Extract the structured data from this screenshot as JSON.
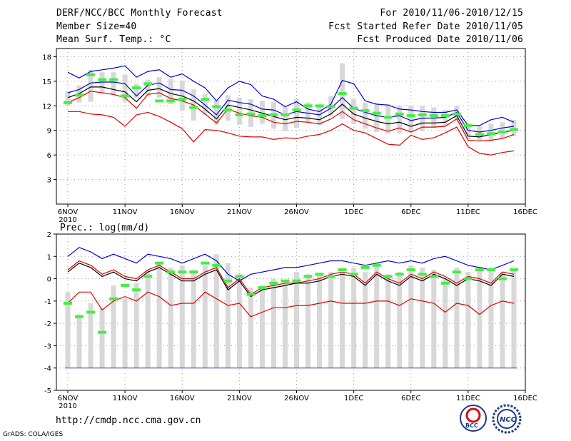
{
  "header": {
    "title": "DERF/NCC/BCC Monthly Forecast",
    "member_size": "Member Size=40",
    "variable": "Mean Surf. Temp.: °C",
    "period": "For 2010/11/06-2010/12/15",
    "start": "Fcst Started Refer Date 2010/11/05",
    "produced": "Fcst Produced Date 2010/11/06"
  },
  "footer": {
    "url": "http://cmdp.ncc.cma.gov.cn",
    "credit": "GrADS: COLA/IGES",
    "logo_bcc_text": "BCC",
    "logo_ncc_text": "NCC"
  },
  "colors": {
    "upper": "#0000e0",
    "lower": "#e00000",
    "mean": "#000000",
    "obs": "#44ee44",
    "bar": "#d8d8d8",
    "grid": "#999999"
  },
  "chart_data": [
    {
      "type": "line",
      "title": "Mean Surf. Temp.: °C",
      "ylim": [
        0,
        19
      ],
      "yticks": [
        3,
        6,
        9,
        12,
        15,
        18
      ],
      "x_tick_labels": [
        "6NOV",
        "11NOV",
        "16NOV",
        "21NOV",
        "26NOV",
        "1DEC",
        "6DEC",
        "11DEC",
        "16DEC"
      ],
      "year_label": "2010",
      "x_days": 40,
      "series": [
        {
          "name": "max",
          "values": [
            16.1,
            15.4,
            16.2,
            16.4,
            16.6,
            16.9,
            15.5,
            16.2,
            16.4,
            15.5,
            15.9,
            15.0,
            14.2,
            12.6,
            14.2,
            15.0,
            14.6,
            13.2,
            12.8,
            11.9,
            12.5,
            11.6,
            11.3,
            12.2,
            15.1,
            14.7,
            12.6,
            12.2,
            12.1,
            11.6,
            11.5,
            11.3,
            11.2,
            11.2,
            11.5,
            9.6,
            9.6,
            10.3,
            10.6,
            10.0
          ]
        },
        {
          "name": "upper",
          "values": [
            13.6,
            14.0,
            14.8,
            14.9,
            14.9,
            14.7,
            13.2,
            14.5,
            14.8,
            14.0,
            13.9,
            13.2,
            12.1,
            10.9,
            12.7,
            12.4,
            12.2,
            11.6,
            11.5,
            10.9,
            11.3,
            11.1,
            10.9,
            11.7,
            13.0,
            11.7,
            11.2,
            10.8,
            10.6,
            10.8,
            10.2,
            10.5,
            10.5,
            10.6,
            11.2,
            9.0,
            8.8,
            9.0,
            9.3,
            9.5
          ]
        },
        {
          "name": "mean",
          "values": [
            13.0,
            13.5,
            14.3,
            14.3,
            14.0,
            13.7,
            12.5,
            13.9,
            14.1,
            13.5,
            13.2,
            12.6,
            11.6,
            10.4,
            12.1,
            11.8,
            11.5,
            11.1,
            10.7,
            10.3,
            10.6,
            10.5,
            10.3,
            11.0,
            12.2,
            11.0,
            10.5,
            10.1,
            9.8,
            10.0,
            9.5,
            9.9,
            9.9,
            10.0,
            10.8,
            8.3,
            8.2,
            8.5,
            8.8,
            9.0
          ]
        },
        {
          "name": "lower",
          "values": [
            12.4,
            13.0,
            13.8,
            13.6,
            13.4,
            13.0,
            11.7,
            13.4,
            13.6,
            12.9,
            12.6,
            12.1,
            11.0,
            9.9,
            11.6,
            11.1,
            10.8,
            10.6,
            10.0,
            9.8,
            10.1,
            10.0,
            9.8,
            10.4,
            11.3,
            10.3,
            9.8,
            9.3,
            8.9,
            9.3,
            8.8,
            9.4,
            9.4,
            9.5,
            10.4,
            7.8,
            7.7,
            7.8,
            8.0,
            8.5
          ]
        },
        {
          "name": "min",
          "values": [
            11.3,
            11.3,
            11.0,
            10.9,
            10.6,
            9.5,
            10.9,
            11.2,
            10.7,
            10.0,
            9.2,
            7.6,
            9.1,
            9.0,
            8.7,
            8.3,
            8.2,
            8.2,
            7.9,
            8.1,
            8.0,
            8.3,
            8.5,
            9.0,
            9.8,
            9.0,
            8.7,
            8.0,
            7.3,
            7.2,
            8.4,
            7.9,
            8.1,
            8.7,
            9.4,
            7.0,
            6.2,
            6.0,
            6.3,
            6.5
          ]
        },
        {
          "name": "obs",
          "values": [
            12.4,
            13.3,
            15.8,
            15.2,
            15.2,
            13.2,
            14.2,
            14.7,
            12.6,
            12.6,
            12.8,
            11.8,
            12.8,
            11.9,
            11.5,
            10.9,
            11.0,
            10.8,
            10.9,
            10.9,
            11.5,
            12.0,
            12.0,
            11.9,
            13.5,
            11.7,
            11.4,
            11.1,
            10.6,
            11.0,
            10.8,
            10.9,
            10.8,
            10.8,
            11.0,
            9.6,
            8.5,
            8.6,
            8.8,
            9.1
          ]
        },
        {
          "name": "bar_top",
          "values": [
            13.8,
            14.5,
            16.4,
            16.1,
            16.1,
            15.8,
            14.7,
            15.2,
            15.5,
            15.3,
            15.1,
            14.0,
            13.5,
            12.7,
            13.3,
            13.0,
            12.8,
            12.6,
            12.5,
            12.0,
            12.8,
            12.4,
            12.0,
            13.2,
            17.2,
            12.8,
            12.4,
            12.3,
            12.2,
            12.0,
            12.0,
            12.0,
            11.8,
            11.5,
            12.0,
            9.7,
            9.5,
            9.8,
            10.0,
            10.3
          ]
        },
        {
          "name": "bar_bottom",
          "values": [
            12.0,
            12.4,
            12.5,
            13.6,
            13.3,
            12.5,
            13.0,
            13.2,
            13.0,
            12.2,
            11.4,
            10.2,
            10.9,
            9.7,
            10.2,
            9.7,
            9.4,
            9.8,
            9.2,
            8.9,
            9.3,
            10.0,
            9.6,
            10.8,
            10.4,
            9.8,
            9.2,
            8.8,
            8.6,
            8.6,
            8.7,
            8.9,
            9.3,
            9.5,
            10.2,
            7.9,
            7.7,
            7.7,
            8.0,
            8.3
          ]
        }
      ]
    },
    {
      "type": "line",
      "title": "Prec.: log(mm/d)",
      "ylim": [
        -5,
        2
      ],
      "yticks": [
        -5,
        -4,
        -3,
        -2,
        -1,
        0,
        1,
        2
      ],
      "x_tick_labels": [
        "6NOV",
        "11NOV",
        "16NOV",
        "21NOV",
        "26NOV",
        "1DEC",
        "6DEC",
        "11DEC",
        "16DEC"
      ],
      "year_label": "2010",
      "x_days": 40,
      "floor": -4,
      "series": [
        {
          "name": "upper",
          "values": [
            1.0,
            1.4,
            1.2,
            0.9,
            1.1,
            0.9,
            0.7,
            1.1,
            1.0,
            0.9,
            0.7,
            0.9,
            1.1,
            0.8,
            0.2,
            -0.1,
            0.2,
            0.3,
            0.4,
            0.5,
            0.5,
            0.6,
            0.7,
            0.8,
            0.8,
            0.7,
            0.6,
            0.7,
            0.8,
            0.7,
            0.8,
            0.7,
            0.9,
            1.0,
            0.8,
            0.6,
            0.5,
            0.4,
            0.6,
            0.8
          ]
        },
        {
          "name": "mean_red",
          "values": [
            0.4,
            0.8,
            0.6,
            0.2,
            0.4,
            0.1,
            0.0,
            0.4,
            0.6,
            0.3,
            0.0,
            0.0,
            0.3,
            0.5,
            -0.4,
            0.0,
            -0.7,
            -0.4,
            -0.3,
            -0.2,
            -0.2,
            -0.1,
            0.0,
            0.2,
            0.3,
            0.2,
            -0.2,
            0.3,
            0.0,
            -0.2,
            0.2,
            0.0,
            0.3,
            0.1,
            -0.2,
            0.1,
            0.0,
            -0.2,
            0.3,
            0.2
          ]
        },
        {
          "name": "mean",
          "values": [
            0.3,
            0.7,
            0.5,
            0.1,
            0.3,
            0.0,
            -0.1,
            0.3,
            0.5,
            0.2,
            -0.1,
            -0.1,
            0.2,
            0.4,
            -0.5,
            -0.1,
            -0.8,
            -0.5,
            -0.4,
            -0.3,
            -0.2,
            -0.2,
            -0.1,
            0.1,
            0.2,
            0.1,
            -0.3,
            0.2,
            -0.1,
            -0.3,
            0.1,
            -0.1,
            0.2,
            0.0,
            -0.3,
            0.0,
            -0.1,
            -0.3,
            0.2,
            0.1
          ]
        },
        {
          "name": "lower",
          "values": [
            -1.1,
            -0.6,
            -0.6,
            -1.4,
            -1.0,
            -0.8,
            -1.0,
            -0.6,
            -0.8,
            -1.2,
            -1.1,
            -1.1,
            -0.6,
            -0.9,
            -1.2,
            -1.1,
            -1.7,
            -1.5,
            -1.3,
            -1.3,
            -1.2,
            -1.2,
            -1.1,
            -1.0,
            -1.1,
            -1.1,
            -1.1,
            -1.0,
            -1.0,
            -1.2,
            -0.9,
            -1.0,
            -1.1,
            -1.5,
            -1.1,
            -1.2,
            -1.6,
            -1.2,
            -1.0,
            -1.1
          ]
        },
        {
          "name": "obs",
          "values": [
            -1.1,
            -1.7,
            -1.5,
            -2.4,
            -0.9,
            -0.3,
            -0.5,
            0.1,
            0.7,
            0.3,
            0.3,
            0.3,
            0.7,
            0.6,
            -0.1,
            0.1,
            -0.7,
            -0.4,
            -0.2,
            -0.1,
            -0.1,
            0.1,
            0.2,
            0.1,
            0.4,
            0.2,
            0.5,
            0.6,
            0.1,
            0.2,
            0.4,
            0.2,
            0.1,
            -0.2,
            0.3,
            0.0,
            0.4,
            0.4,
            0.0,
            0.4
          ]
        },
        {
          "name": "bar_top",
          "values": [
            -0.6,
            -1.6,
            -1.1,
            -1.3,
            -0.3,
            -0.9,
            -0.2,
            0.4,
            0.7,
            0.5,
            0.6,
            0.4,
            0.6,
            1.1,
            0.7,
            0.2,
            -0.4,
            -0.3,
            0.0,
            -0.2,
            0.3,
            0.2,
            0.2,
            0.3,
            0.3,
            0.5,
            0.3,
            0.7,
            0.2,
            0.3,
            0.6,
            0.5,
            0.4,
            0.0,
            0.5,
            0.3,
            0.5,
            0.5,
            0.3,
            0.4
          ]
        },
        {
          "name": "bar_bottom",
          "values": [
            -4.0,
            -4.0,
            -4.0,
            -4.0,
            -4.0,
            -4.0,
            -4.0,
            -4.0,
            -4.0,
            -4.0,
            -4.0,
            -4.0,
            -4.0,
            -4.0,
            -4.0,
            -4.0,
            -4.0,
            -4.0,
            -4.0,
            -4.0,
            -4.0,
            -4.0,
            -4.0,
            -4.0,
            -4.0,
            -4.0,
            -4.0,
            -4.0,
            -4.0,
            -4.0,
            -4.0,
            -4.0,
            -4.0,
            -4.0,
            -4.0,
            -4.0,
            -4.0,
            -4.0,
            -4.0,
            -4.0
          ]
        }
      ]
    }
  ]
}
